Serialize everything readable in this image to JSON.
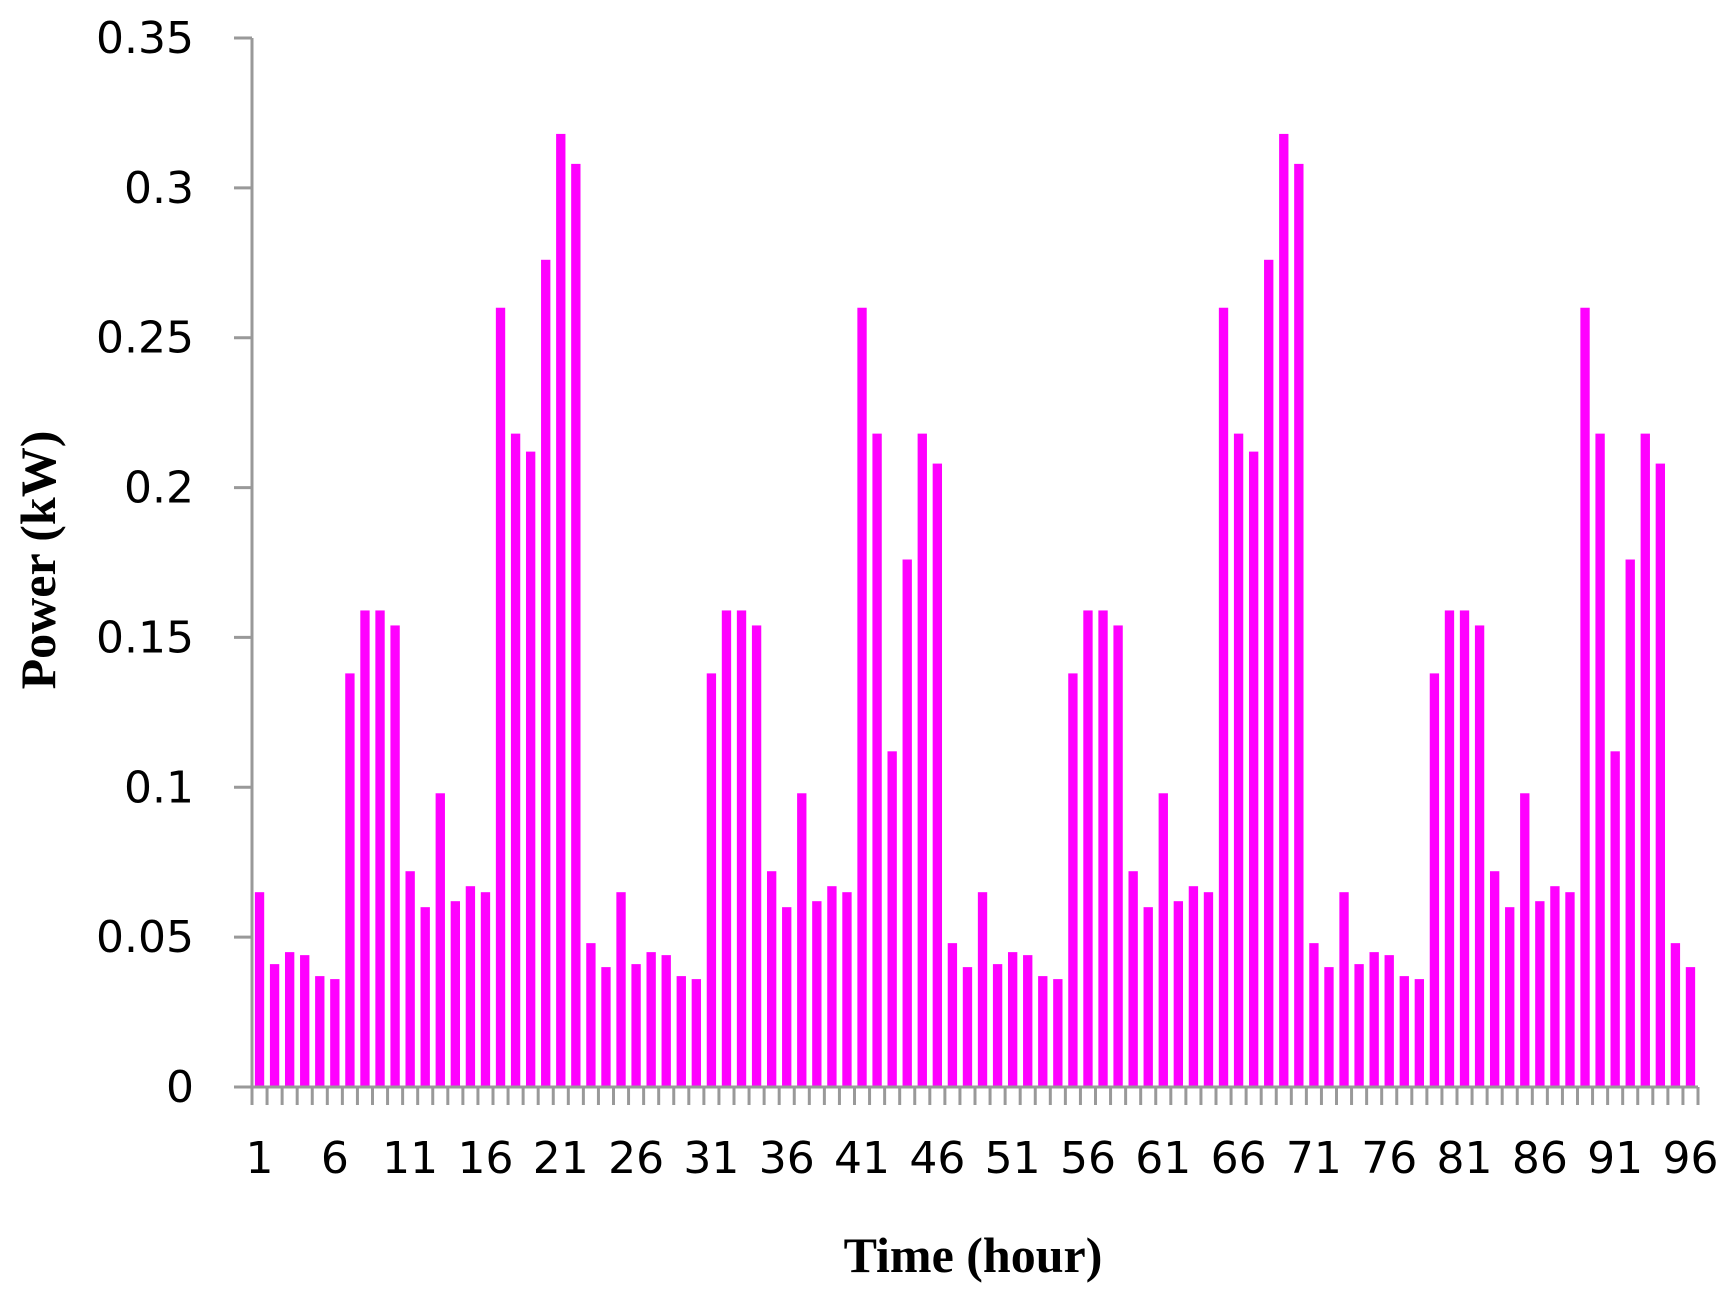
{
  "colors": {
    "bar": "#ff00ff",
    "axis": "#999999",
    "text": "#000000"
  },
  "chart_data": {
    "type": "bar",
    "title": "",
    "xlabel": "Time (hour)",
    "ylabel": "Power (kW)",
    "ylim": [
      0,
      0.35
    ],
    "grid": false,
    "legend": "none",
    "y_ticks": [
      "0",
      "0.05",
      "0.1",
      "0.15",
      "0.2",
      "0.25",
      "0.3",
      "0.35"
    ],
    "x_tick_labels": [
      "1",
      "6",
      "11",
      "16",
      "21",
      "26",
      "31",
      "36",
      "41",
      "46",
      "51",
      "56",
      "61",
      "66",
      "71",
      "76",
      "81",
      "86",
      "91",
      "96"
    ],
    "categories": [
      1,
      2,
      3,
      4,
      5,
      6,
      7,
      8,
      9,
      10,
      11,
      12,
      13,
      14,
      15,
      16,
      17,
      18,
      19,
      20,
      21,
      22,
      23,
      24,
      25,
      26,
      27,
      28,
      29,
      30,
      31,
      32,
      33,
      34,
      35,
      36,
      37,
      38,
      39,
      40,
      41,
      42,
      43,
      44,
      45,
      46,
      47,
      48,
      49,
      50,
      51,
      52,
      53,
      54,
      55,
      56,
      57,
      58,
      59,
      60,
      61,
      62,
      63,
      64,
      65,
      66,
      67,
      68,
      69,
      70,
      71,
      72,
      73,
      74,
      75,
      76,
      77,
      78,
      79,
      80,
      81,
      82,
      83,
      84,
      85,
      86,
      87,
      88,
      89,
      90,
      91,
      92,
      93,
      94,
      95,
      96
    ],
    "values": [
      0.065,
      0.041,
      0.045,
      0.044,
      0.037,
      0.036,
      0.138,
      0.159,
      0.159,
      0.154,
      0.072,
      0.06,
      0.098,
      0.062,
      0.067,
      0.065,
      0.26,
      0.218,
      0.212,
      0.276,
      0.318,
      0.308,
      0.048,
      0.04,
      0.065,
      0.041,
      0.045,
      0.044,
      0.037,
      0.036,
      0.138,
      0.159,
      0.159,
      0.154,
      0.072,
      0.06,
      0.098,
      0.062,
      0.067,
      0.065,
      0.26,
      0.218,
      0.112,
      0.176,
      0.218,
      0.208,
      0.048,
      0.04,
      0.065,
      0.041,
      0.045,
      0.044,
      0.037,
      0.036,
      0.138,
      0.159,
      0.159,
      0.154,
      0.072,
      0.06,
      0.098,
      0.062,
      0.067,
      0.065,
      0.26,
      0.218,
      0.212,
      0.276,
      0.318,
      0.308,
      0.048,
      0.04,
      0.065,
      0.041,
      0.045,
      0.044,
      0.037,
      0.036,
      0.138,
      0.159,
      0.159,
      0.154,
      0.072,
      0.06,
      0.098,
      0.062,
      0.067,
      0.065,
      0.26,
      0.218,
      0.112,
      0.176,
      0.218,
      0.208,
      0.048,
      0.04
    ]
  }
}
